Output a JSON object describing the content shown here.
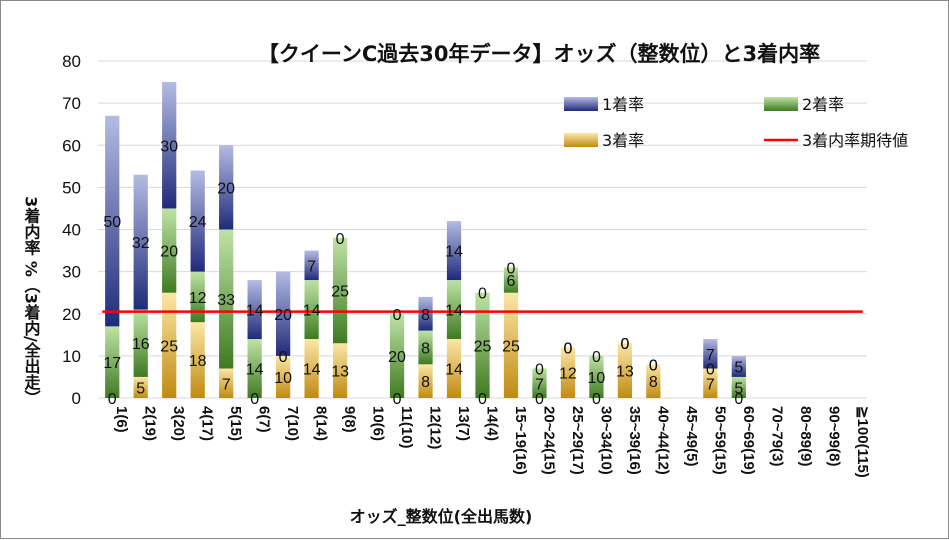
{
  "chart_data": {
    "type": "bar",
    "title": "【クイーンC過去30年データ】オッズ（整数位）と3着内率",
    "xlabel": "オッズ_整数位(全出馬数)",
    "ylabel": "3着内率 %（3着内/全出走）",
    "ylim": [
      0,
      80
    ],
    "yticks": [
      "0",
      "10",
      "20",
      "30",
      "40",
      "50",
      "60",
      "70",
      "80"
    ],
    "grid": true,
    "legend_position": "top-right",
    "categories": [
      "1(6)",
      "2(19)",
      "3(20)",
      "4(17)",
      "5(15)",
      "6(7)",
      "7(10)",
      "8(14)",
      "9(8)",
      "10(6)",
      "11(10)",
      "12(12)",
      "13(7)",
      "14(4)",
      "15~19(16)",
      "20~24(15)",
      "25~29(17)",
      "30~34(10)",
      "35~39(16)",
      "40~44(12)",
      "45~49(5)",
      "50~59(15)",
      "60~69(19)",
      "70~79(3)",
      "80~89(9)",
      "90~99(8)",
      "≧100(115)"
    ],
    "series": [
      {
        "name": "3着率",
        "stack_order": 1,
        "values": [
          0,
          5,
          25,
          18,
          7,
          0,
          10,
          14,
          13,
          0,
          0,
          8,
          14,
          0,
          25,
          0,
          12,
          0,
          13,
          8,
          0,
          7,
          0,
          0,
          0,
          0,
          0
        ]
      },
      {
        "name": "2着率",
        "stack_order": 2,
        "values": [
          17,
          16,
          20,
          12,
          33,
          14,
          0,
          14,
          25,
          0,
          20,
          8,
          14,
          25,
          6,
          7,
          0,
          10,
          0,
          0,
          0,
          0,
          5,
          0,
          0,
          0,
          0
        ]
      },
      {
        "name": "1着率",
        "stack_order": 3,
        "values": [
          50,
          32,
          30,
          24,
          20,
          14,
          20,
          7,
          0,
          0,
          0,
          8,
          14,
          0,
          0,
          0,
          0,
          0,
          0,
          0,
          0,
          7,
          5,
          0,
          0,
          0,
          0
        ]
      }
    ],
    "reference_line": {
      "name": "3着内率期待値",
      "value": 20.5
    },
    "colors": {
      "1着率": "#2b3a8c",
      "2着率": "#4e8a2e",
      "3着率": "#c9951c",
      "3着内率期待値": "#ff0000"
    }
  }
}
